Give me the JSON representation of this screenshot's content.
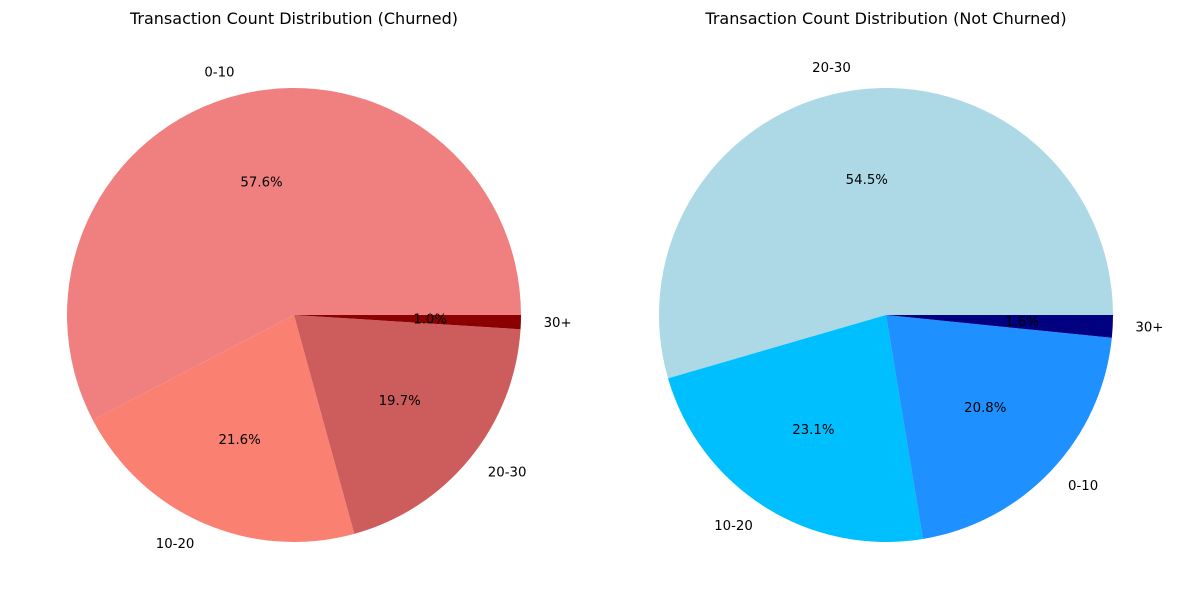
{
  "chart_data": [
    {
      "type": "pie",
      "title": "Transaction Count Distribution (Churned)",
      "labels": [
        "0-10",
        "10-20",
        "20-30",
        "30+"
      ],
      "values": [
        57.6,
        21.6,
        19.7,
        1.0
      ],
      "value_labels": [
        "57.6%",
        "21.6%",
        "19.7%",
        "1.0%"
      ],
      "colors": [
        "#f08080",
        "#fa8072",
        "#cd5c5c",
        "#8b0000"
      ],
      "start_angle_deg": 0,
      "direction": "counterclockwise"
    },
    {
      "type": "pie",
      "title": "Transaction Count Distribution (Not Churned)",
      "labels": [
        "20-30",
        "10-20",
        "0-10",
        "30+"
      ],
      "values": [
        54.5,
        23.1,
        20.8,
        1.6
      ],
      "value_labels": [
        "54.5%",
        "23.1%",
        "20.8%",
        "1.6%"
      ],
      "colors": [
        "#add8e6",
        "#00bfff",
        "#1e90ff",
        "#000080"
      ],
      "start_angle_deg": 0,
      "direction": "counterclockwise"
    }
  ]
}
